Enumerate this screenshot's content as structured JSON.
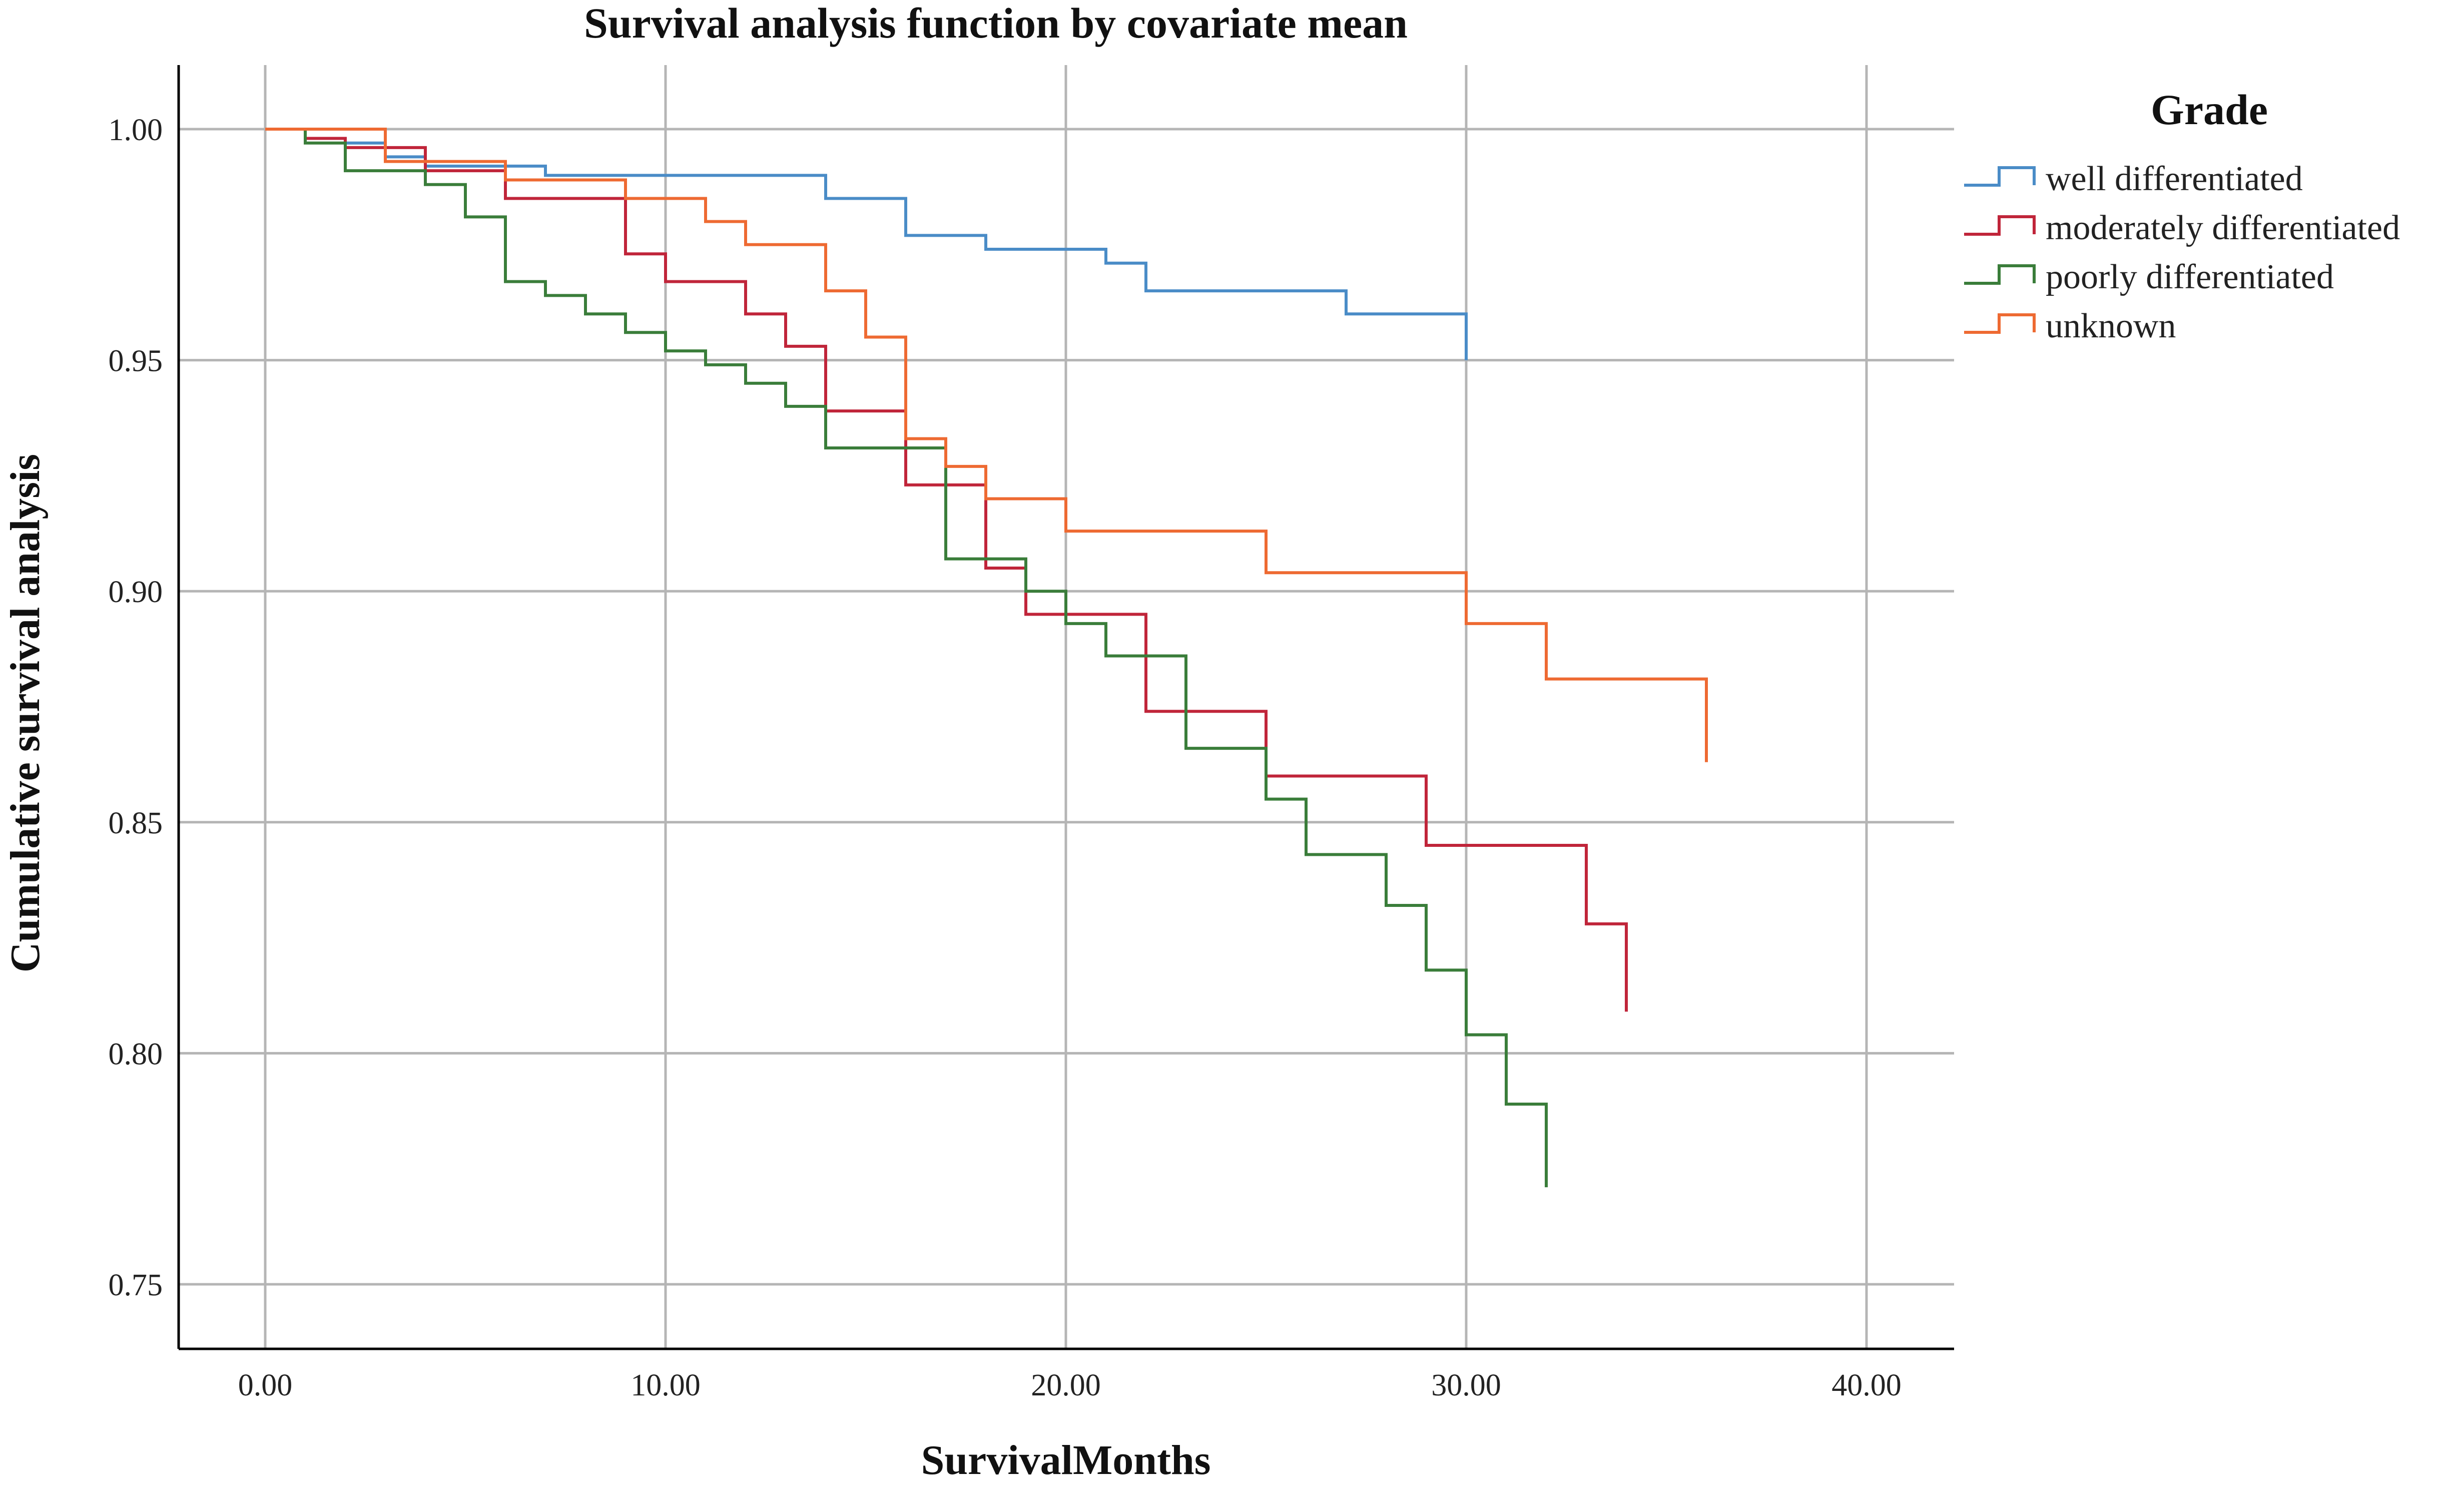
{
  "chart_data": {
    "type": "line",
    "title": "Survival analysis function by covariate mean",
    "xlabel": "SurvivalMonths",
    "ylabel": "Cumulative survival analysis",
    "xlim": [
      0,
      40
    ],
    "ylim": [
      0.75,
      1.0
    ],
    "x_ticks": [
      "0.00",
      "10.00",
      "20.00",
      "30.00",
      "40.00"
    ],
    "y_ticks": [
      "0.75",
      "0.80",
      "0.85",
      "0.90",
      "0.95",
      "1.00"
    ],
    "grid": true,
    "legend": {
      "title": "Grade",
      "position": "right"
    },
    "series": [
      {
        "name": "well differentiated",
        "color": "#4a8cc7",
        "step_x": [
          0,
          1,
          2,
          3,
          4,
          7,
          14,
          16,
          18,
          21,
          22,
          27,
          30
        ],
        "step_y": [
          1.0,
          0.998,
          0.997,
          0.994,
          0.992,
          0.99,
          0.985,
          0.977,
          0.974,
          0.971,
          0.965,
          0.96,
          0.95
        ]
      },
      {
        "name": "moderately differentiated",
        "color": "#c0253a",
        "step_x": [
          0,
          1,
          2,
          4,
          6,
          9,
          10,
          12,
          13,
          14,
          16,
          18,
          19,
          22,
          25,
          29,
          33,
          34
        ],
        "step_y": [
          1.0,
          0.998,
          0.996,
          0.991,
          0.985,
          0.973,
          0.967,
          0.96,
          0.953,
          0.939,
          0.923,
          0.905,
          0.895,
          0.874,
          0.86,
          0.845,
          0.828,
          0.809
        ]
      },
      {
        "name": "poorly differentiated",
        "color": "#3a7d3a",
        "step_x": [
          0,
          1,
          2,
          4,
          5,
          6,
          7,
          8,
          9,
          10,
          11,
          12,
          13,
          14,
          17,
          19,
          20,
          21,
          23,
          25,
          26,
          28,
          29,
          30,
          31,
          32
        ],
        "step_y": [
          1.0,
          0.997,
          0.991,
          0.988,
          0.981,
          0.967,
          0.964,
          0.96,
          0.956,
          0.952,
          0.949,
          0.945,
          0.94,
          0.931,
          0.907,
          0.9,
          0.893,
          0.886,
          0.866,
          0.855,
          0.843,
          0.832,
          0.818,
          0.804,
          0.789,
          0.771
        ]
      },
      {
        "name": "unknown",
        "color": "#ee6a32",
        "step_x": [
          0,
          3,
          6,
          9,
          11,
          12,
          14,
          15,
          16,
          17,
          18,
          20,
          25,
          30,
          32,
          36
        ],
        "step_y": [
          1.0,
          0.993,
          0.989,
          0.985,
          0.98,
          0.975,
          0.965,
          0.955,
          0.933,
          0.927,
          0.92,
          0.913,
          0.904,
          0.893,
          0.881,
          0.863
        ]
      }
    ]
  }
}
